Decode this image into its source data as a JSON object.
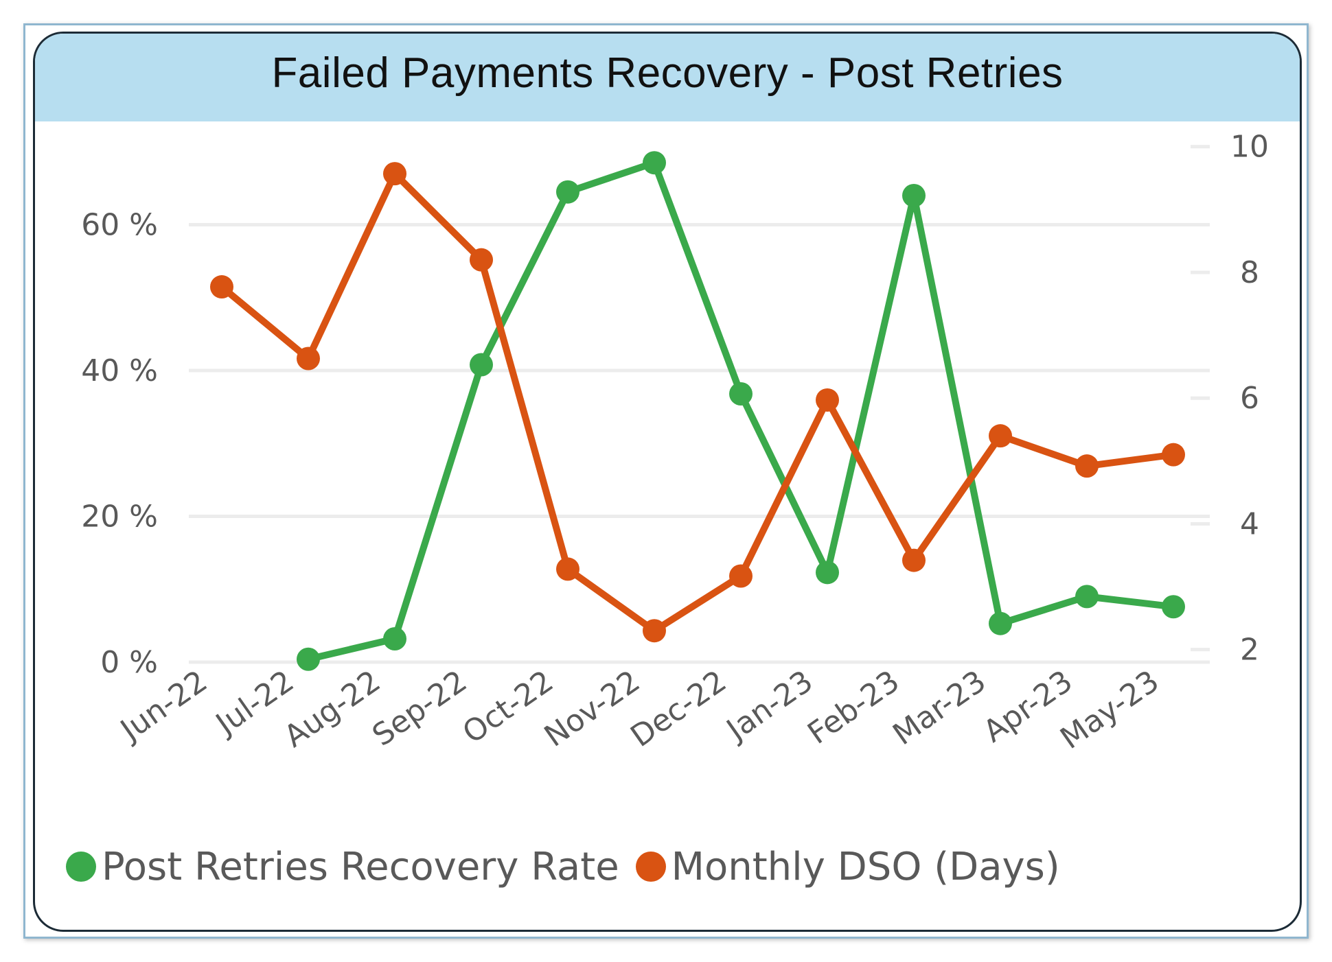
{
  "colors": {
    "header_bg": "#b7def0",
    "recovery": "#3aa94b",
    "dso": "#d95312",
    "axis_text": "#595959",
    "grid": "#ececec"
  },
  "chart_data": {
    "type": "line",
    "title": "Failed Payments Recovery - Post Retries",
    "categories": [
      "Jun-22",
      "Jul-22",
      "Aug-22",
      "Sep-22",
      "Oct-22",
      "Nov-22",
      "Dec-22",
      "Jan-23",
      "Feb-23",
      "Mar-23",
      "Apr-23",
      "May-23"
    ],
    "series": [
      {
        "name": "Post Retries Recovery Rate",
        "axis": "left",
        "color": "#3aa94b",
        "values": [
          null,
          0.4,
          3.2,
          40.8,
          64.5,
          68.5,
          36.8,
          12.3,
          64.0,
          5.3,
          9.0,
          7.6
        ]
      },
      {
        "name": "Monthly DSO (Days)",
        "axis": "right",
        "color": "#d95312",
        "values": [
          7.77,
          6.63,
          9.57,
          8.2,
          3.28,
          2.3,
          3.17,
          5.97,
          3.42,
          5.4,
          4.92,
          5.1
        ]
      }
    ],
    "y_left": {
      "ticks": [
        0,
        20,
        40,
        60
      ],
      "tick_labels": [
        "0 %",
        "20 %",
        "40 %",
        "60 %"
      ],
      "range": [
        0,
        72
      ]
    },
    "y_right": {
      "ticks": [
        2,
        4,
        6,
        8,
        10
      ],
      "tick_labels": [
        "2",
        "4",
        "6",
        "8",
        "10"
      ],
      "range": [
        1.8,
        10.15
      ]
    },
    "grid": true,
    "legend_position": "bottom-left"
  },
  "legend": {
    "items": [
      {
        "label": "Post Retries Recovery Rate",
        "color": "#3aa94b"
      },
      {
        "label": "Monthly DSO (Days)",
        "color": "#d95312"
      }
    ]
  }
}
